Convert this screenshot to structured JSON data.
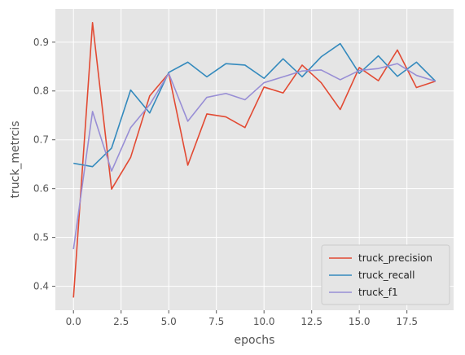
{
  "chart_data": {
    "type": "line",
    "title": "",
    "xlabel": "epochs",
    "ylabel": "truck_metrcis",
    "xlim": [
      -0.95,
      19.95
    ],
    "ylim": [
      0.351,
      0.968
    ],
    "xticks": [
      0,
      2.5,
      5,
      7.5,
      10,
      12.5,
      15,
      17.5
    ],
    "xtick_labels": [
      "0.0",
      "2.5",
      "5.0",
      "7.5",
      "10.0",
      "12.5",
      "15.0",
      "17.5"
    ],
    "yticks": [
      0.4,
      0.5,
      0.6,
      0.7,
      0.8,
      0.9
    ],
    "ytick_labels": [
      "0.4",
      "0.5",
      "0.6",
      "0.7",
      "0.8",
      "0.9"
    ],
    "grid": true,
    "legend_position": "bottom-right",
    "x": [
      0,
      1,
      2,
      3,
      4,
      5,
      6,
      7,
      8,
      9,
      10,
      11,
      12,
      13,
      14,
      15,
      16,
      17,
      18,
      19
    ],
    "series": [
      {
        "name": "truck_precision",
        "color": "#E24A33",
        "values": [
          0.377,
          0.94,
          0.599,
          0.664,
          0.79,
          0.836,
          0.648,
          0.753,
          0.747,
          0.725,
          0.808,
          0.796,
          0.853,
          0.817,
          0.762,
          0.848,
          0.821,
          0.884,
          0.807,
          0.82
        ]
      },
      {
        "name": "truck_recall",
        "color": "#348ABD",
        "values": [
          0.652,
          0.645,
          0.683,
          0.802,
          0.755,
          0.838,
          0.859,
          0.829,
          0.856,
          0.853,
          0.826,
          0.866,
          0.829,
          0.87,
          0.897,
          0.836,
          0.872,
          0.83,
          0.859,
          0.82
        ]
      },
      {
        "name": "truck_f1",
        "color": "#988ED5",
        "values": [
          0.476,
          0.758,
          0.636,
          0.725,
          0.772,
          0.836,
          0.738,
          0.787,
          0.795,
          0.782,
          0.817,
          0.829,
          0.841,
          0.843,
          0.823,
          0.842,
          0.846,
          0.856,
          0.832,
          0.82
        ]
      }
    ]
  }
}
